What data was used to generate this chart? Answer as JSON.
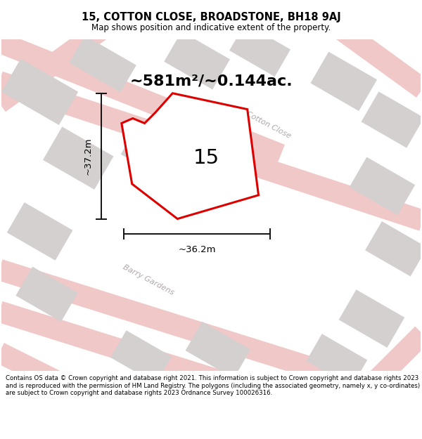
{
  "title": "15, COTTON CLOSE, BROADSTONE, BH18 9AJ",
  "subtitle": "Map shows position and indicative extent of the property.",
  "area_text": "~581m²/~0.144ac.",
  "number_label": "15",
  "height_label": "~37.2m",
  "width_label": "~36.2m",
  "map_bg": "#f2f0f0",
  "building_color": "#d4d0d0",
  "building_edge": "#c8c4c4",
  "plot_outline_color": "#dd0000",
  "dim_line_color": "#111111",
  "road_line_color": "#f0c8c8",
  "road_fill_color": "#ede8e8",
  "street_label_color": "#b0a8a8",
  "cotton_close_label": "Cotton Close",
  "barry_gardens_label": "Barry Gardens",
  "copyright_text": "Contains OS data © Crown copyright and database right 2021. This information is subject to Crown copyright and database rights 2023 and is reproduced with the permission of HM Land Registry. The polygons (including the associated geometry, namely x, y co-ordinates) are subject to Crown copyright and database rights 2023 Ordnance Survey 100026316."
}
